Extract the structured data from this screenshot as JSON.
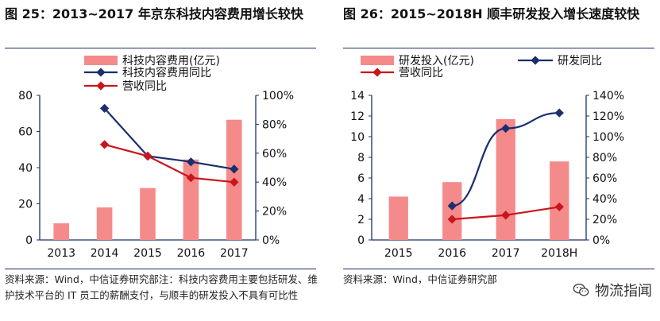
{
  "left_panel": {
    "title": "图 25：2013~2017 年京东科技内容费用增长较快",
    "note": "资料来源：Wind，中信证券研究部注：科技内容费用主要包括研发、维护技术平台的 IT 员工的薪酬支付，与顺丰的研发投入不具有可比性"
  },
  "right_panel": {
    "title": "图 26：2015~2018H 顺丰研发投入增长速度较快",
    "note": "资料来源：Wind，中信证券研究部"
  },
  "watermark": {
    "text": "物流指闻",
    "icon": "wechat-icon"
  },
  "colors": {
    "bar": "#f58a8a",
    "navy": "#1b2f6e",
    "red": "#c8161d",
    "axis": "#1b2f6e"
  },
  "chart_data": [
    {
      "type": "bar",
      "categories": [
        "2013",
        "2014",
        "2015",
        "2016",
        "2017"
      ],
      "series": [
        {
          "name": "科技内容费用(亿元)",
          "type": "bar",
          "axis": "left",
          "values": [
            9.2,
            18,
            28.7,
            44.5,
            66.5
          ]
        },
        {
          "name": "科技内容费用同比",
          "type": "line",
          "axis": "right",
          "values": [
            null,
            91,
            58,
            54,
            49
          ]
        },
        {
          "name": "营收同比",
          "type": "line",
          "axis": "right",
          "values": [
            null,
            66,
            58,
            43,
            40
          ]
        }
      ],
      "y_left": {
        "ylim": [
          0,
          80
        ],
        "ticks": [
          "0",
          "20",
          "40",
          "60",
          "80"
        ]
      },
      "y_right": {
        "ylim": [
          0,
          100
        ],
        "ticks": [
          "0%",
          "20%",
          "40%",
          "60%",
          "80%",
          "100%"
        ]
      },
      "legend_placement": "top-center"
    },
    {
      "type": "bar",
      "categories": [
        "2015",
        "2016",
        "2017",
        "2018H"
      ],
      "series": [
        {
          "name": "研发投入(亿元)",
          "type": "bar",
          "axis": "left",
          "values": [
            4.2,
            5.6,
            11.7,
            7.6
          ]
        },
        {
          "name": "研发同比",
          "type": "line",
          "axis": "right",
          "values": [
            null,
            33,
            108,
            123
          ]
        },
        {
          "name": "营收同比",
          "type": "line",
          "axis": "right",
          "values": [
            null,
            20,
            24,
            32
          ]
        }
      ],
      "y_left": {
        "ylim": [
          0,
          14
        ],
        "ticks": [
          "0",
          "2",
          "4",
          "6",
          "8",
          "10",
          "12",
          "14"
        ]
      },
      "y_right": {
        "ylim": [
          0,
          140
        ],
        "ticks": [
          "0%",
          "20%",
          "40%",
          "60%",
          "80%",
          "100%",
          "120%",
          "140%"
        ]
      },
      "legend_placement": "top-center"
    }
  ]
}
